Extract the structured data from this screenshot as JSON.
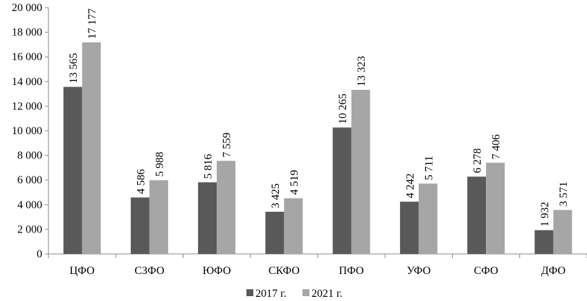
{
  "chart_data": {
    "type": "bar",
    "categories": [
      "ЦФО",
      "СЗФО",
      "ЮФО",
      "СКФО",
      "ПФО",
      "УФО",
      "СФО",
      "ДФО"
    ],
    "series": [
      {
        "name": "2017 г.",
        "color": "#595959",
        "values": [
          13565,
          4586,
          5816,
          3425,
          10265,
          4242,
          6278,
          1932
        ],
        "labels": [
          "13 565",
          "4 586",
          "5 816",
          "3 425",
          "10 265",
          "4 242",
          "6 278",
          "1 932"
        ]
      },
      {
        "name": "2021 г.",
        "color": "#a6a6a6",
        "values": [
          17177,
          5988,
          7559,
          4519,
          13323,
          5711,
          7406,
          3571
        ],
        "labels": [
          "17 177",
          "5 988",
          "7 559",
          "4 519",
          "13 323",
          "5 711",
          "7 406",
          "3 571"
        ]
      }
    ],
    "ylim": [
      0,
      20000
    ],
    "yticks": [
      0,
      2000,
      4000,
      6000,
      8000,
      10000,
      12000,
      14000,
      16000,
      18000,
      20000
    ],
    "ytick_labels": [
      "0",
      "2 000",
      "4 000",
      "6 000",
      "8 000",
      "10 000",
      "12 000",
      "14 000",
      "16 000",
      "18 000",
      "20 000"
    ],
    "grid": false,
    "legend_position": "bottom-center",
    "data_labels": "rotated-vertical"
  }
}
